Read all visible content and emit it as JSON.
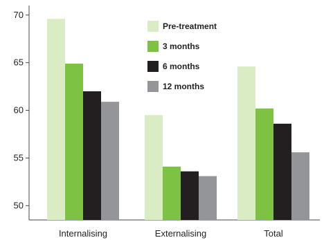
{
  "chart_data": {
    "type": "bar",
    "categories": [
      "Internalising",
      "Externalising",
      "Total"
    ],
    "series": [
      {
        "name": "Pre-treatment",
        "values": [
          69.6,
          59.5,
          64.6
        ],
        "color": "#d9ecc4"
      },
      {
        "name": "3 months",
        "values": [
          64.9,
          54.1,
          60.2
        ],
        "color": "#7dc242"
      },
      {
        "name": "6 months",
        "values": [
          62.0,
          53.6,
          58.6
        ],
        "color": "#231f20"
      },
      {
        "name": "12 months",
        "values": [
          60.9,
          53.1,
          55.6
        ],
        "color": "#939598"
      }
    ],
    "ylim": [
      48.5,
      71
    ],
    "yticks": [
      "50",
      "55",
      "60",
      "65",
      "70"
    ],
    "title": "",
    "xlabel": "",
    "ylabel": "",
    "legend_position": "top-center",
    "grid": false
  }
}
